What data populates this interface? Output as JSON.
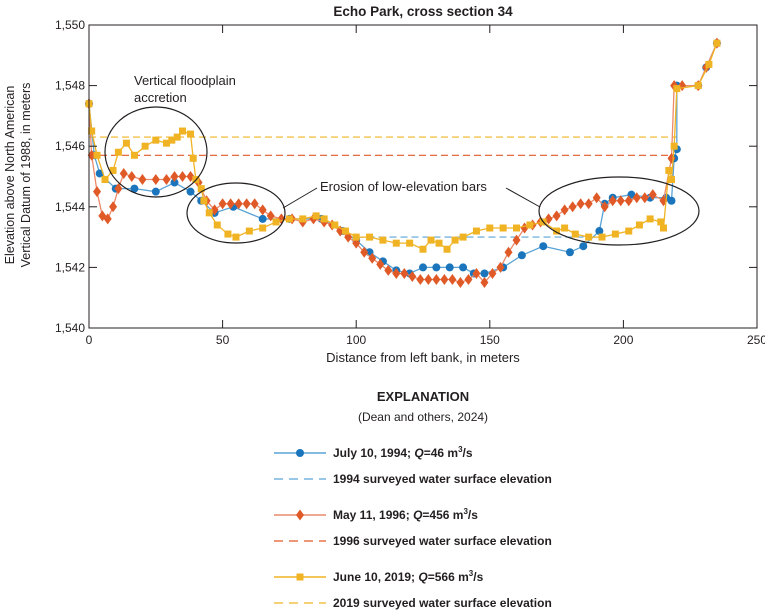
{
  "chart_data": {
    "type": "line",
    "title": "Echo Park, cross section 34",
    "xlabel": "Distance from left bank, in meters",
    "ylabel": [
      "Elevation above North American",
      "Vertical Datum of 1988, in meters"
    ],
    "xlim": [
      0,
      250
    ],
    "ylim": [
      1540,
      1550
    ],
    "xticks": [
      0,
      50,
      100,
      150,
      200,
      250
    ],
    "xtick_labels": [
      "0",
      "50",
      "100",
      "150",
      "200",
      "250"
    ],
    "yticks": [
      1540,
      1542,
      1544,
      1546,
      1548,
      1550
    ],
    "ytick_labels": [
      "1,540",
      "1,542",
      "1,544",
      "1,546",
      "1,548",
      "1,550"
    ],
    "grid": false,
    "annotations": {
      "accretion": [
        "Vertical floodplain",
        "accretion"
      ],
      "erosion": "Erosion of low-elevation bars"
    },
    "legend": {
      "title": "EXPLANATION",
      "subtitle": "(Dean and others, 2024)",
      "placement": "below"
    },
    "series": [
      {
        "name": "July 10, 1994; Q=46 m3/s",
        "label_parts": [
          "July 10, 1994; ",
          "Q",
          "=46 m",
          "3",
          "/s"
        ],
        "color": "#1b75bc",
        "line_color": "#5aa3d6",
        "marker": "circle",
        "x": [
          0,
          2,
          4,
          10,
          17,
          25,
          32,
          38,
          42,
          47,
          54,
          65,
          75,
          87,
          95,
          100,
          105,
          110,
          115,
          120,
          125,
          130,
          135,
          140,
          144,
          148,
          155,
          162,
          170,
          180,
          185,
          191,
          193,
          196,
          203,
          210,
          216,
          218,
          219,
          220,
          220,
          228,
          231,
          235
        ],
        "y": [
          1547.4,
          1545.7,
          1545.1,
          1544.6,
          1544.6,
          1544.5,
          1544.8,
          1544.5,
          1544.2,
          1543.8,
          1544.0,
          1543.6,
          1543.6,
          1543.6,
          1543.2,
          1542.9,
          1542.5,
          1542.2,
          1541.9,
          1541.8,
          1542.0,
          1542.0,
          1542.0,
          1542.0,
          1541.8,
          1541.8,
          1542.0,
          1542.4,
          1542.7,
          1542.5,
          1542.7,
          1543.2,
          1544.1,
          1544.3,
          1544.4,
          1544.3,
          1544.3,
          1544.2,
          1545.6,
          1545.9,
          1548.0,
          1548.0,
          1548.6,
          1549.4
        ]
      },
      {
        "name": "May 11, 1996; Q=456 m3/s",
        "label_parts": [
          "May 11, 1996; ",
          "Q",
          "=456 m",
          "3",
          "/s"
        ],
        "color": "#e05a28",
        "line_color": "#ec8a6a",
        "marker": "diamond",
        "x": [
          0,
          1,
          3,
          5,
          7,
          9,
          11,
          13,
          16,
          20,
          25,
          29,
          32,
          35,
          38,
          41,
          44,
          47,
          50,
          53,
          56,
          59,
          62,
          65,
          68,
          72,
          76,
          80,
          84,
          88,
          91,
          94,
          97,
          100,
          103,
          106,
          109,
          112,
          115,
          118,
          121,
          124,
          127,
          130,
          133,
          136,
          139,
          142,
          145,
          148,
          151,
          154,
          157,
          160,
          163,
          166,
          169,
          172,
          175,
          178,
          181,
          184,
          187,
          190,
          193,
          196,
          199,
          202,
          205,
          208,
          211,
          215,
          218,
          219,
          222,
          228,
          231,
          235
        ],
        "y": [
          1547.4,
          1545.7,
          1544.5,
          1543.7,
          1543.6,
          1544.0,
          1544.6,
          1545.1,
          1545.0,
          1544.9,
          1544.9,
          1544.9,
          1545.0,
          1545.0,
          1545.0,
          1544.8,
          1544.2,
          1543.9,
          1544.1,
          1544.1,
          1544.1,
          1544.1,
          1544.1,
          1543.9,
          1543.7,
          1543.6,
          1543.6,
          1543.5,
          1543.6,
          1543.5,
          1543.4,
          1543.2,
          1543.0,
          1542.8,
          1542.5,
          1542.3,
          1542.1,
          1541.9,
          1541.8,
          1541.8,
          1541.7,
          1541.6,
          1541.6,
          1541.6,
          1541.6,
          1541.6,
          1541.5,
          1541.6,
          1541.8,
          1541.5,
          1541.8,
          1542.0,
          1542.5,
          1542.9,
          1543.3,
          1543.4,
          1543.5,
          1543.6,
          1543.7,
          1543.9,
          1544.0,
          1544.1,
          1544.1,
          1544.3,
          1544.0,
          1544.2,
          1544.2,
          1544.2,
          1544.3,
          1544.3,
          1544.4,
          1544.2,
          1545.6,
          1548.0,
          1548.0,
          1548.0,
          1548.6,
          1549.4
        ]
      },
      {
        "name": "June 10, 2019; Q=566 m3/s",
        "label_parts": [
          "June 10, 2019; ",
          "Q",
          "=566 m",
          "3",
          "/s"
        ],
        "color": "#f0b323",
        "line_color": "#f0b323",
        "marker": "square",
        "x": [
          0,
          1,
          3,
          6,
          9,
          11,
          14,
          17,
          21,
          25,
          29,
          31,
          33,
          35,
          38,
          39,
          40,
          42,
          43,
          45,
          48,
          52,
          55,
          60,
          65,
          70,
          75,
          80,
          85,
          88,
          92,
          96,
          100,
          105,
          110,
          115,
          120,
          125,
          128,
          131,
          134,
          137,
          140,
          145,
          150,
          155,
          160,
          165,
          170,
          175,
          178,
          182,
          187,
          192,
          197,
          202,
          206,
          210,
          214,
          215,
          217,
          218,
          219,
          220,
          228,
          232,
          235
        ],
        "y": [
          1547.4,
          1546.5,
          1545.7,
          1544.9,
          1545.2,
          1545.8,
          1546.1,
          1545.7,
          1546.0,
          1546.2,
          1546.1,
          1546.2,
          1546.3,
          1546.5,
          1546.4,
          1545.6,
          1544.9,
          1544.6,
          1544.2,
          1543.8,
          1543.4,
          1543.1,
          1543.0,
          1543.2,
          1543.3,
          1543.5,
          1543.6,
          1543.6,
          1543.7,
          1543.6,
          1543.4,
          1543.2,
          1543.0,
          1543.0,
          1542.9,
          1542.8,
          1542.8,
          1542.6,
          1542.9,
          1542.8,
          1542.6,
          1542.9,
          1543.0,
          1543.2,
          1543.3,
          1543.3,
          1543.3,
          1543.4,
          1543.5,
          1543.2,
          1543.3,
          1543.1,
          1543.0,
          1543.0,
          1543.1,
          1543.2,
          1543.4,
          1543.6,
          1543.5,
          1543.3,
          1545.2,
          1544.9,
          1546.0,
          1547.9,
          1548.0,
          1548.7,
          1549.4
        ]
      }
    ],
    "reference_lines": [
      {
        "name": "1994 surveyed water surface elevation",
        "color": "#5aa3d6",
        "y": 1543.0,
        "x": [
          96,
          190
        ]
      },
      {
        "name": "1996 surveyed water surface elevation",
        "color": "#e05a28",
        "y": 1545.7,
        "x": [
          0,
          220
        ]
      },
      {
        "name": "2019 surveyed water surface elevation",
        "color": "#f0b323",
        "y": 1546.3,
        "x": [
          0,
          220
        ]
      }
    ]
  }
}
